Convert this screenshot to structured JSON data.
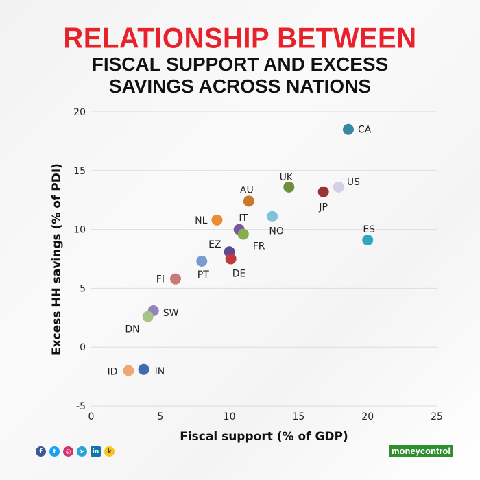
{
  "title_line1": "RELATIONSHIP BETWEEN",
  "title_line2": "FISCAL SUPPORT AND EXCESS",
  "title_line3": "SAVINGS ACROSS NATIONS",
  "brand": "moneycontrol",
  "social_icons": [
    "facebook-icon",
    "twitter-icon",
    "instagram-icon",
    "telegram-icon",
    "linkedin-icon",
    "koo-icon"
  ],
  "chart_data": {
    "type": "scatter",
    "xlabel": "Fiscal support (% of GDP)",
    "ylabel": "Excess HH savings (% of PDI)",
    "xlim": [
      0,
      25
    ],
    "ylim": [
      -5,
      20
    ],
    "xticks": [
      0,
      5,
      10,
      15,
      20,
      25
    ],
    "yticks": [
      -5,
      0,
      5,
      10,
      15,
      20
    ],
    "grid": "horizontal",
    "points": [
      {
        "label": "CA",
        "x": 18.6,
        "y": 18.5,
        "color": "#3a87a0"
      },
      {
        "label": "US",
        "x": 17.9,
        "y": 13.6,
        "color": "#d3d0e6"
      },
      {
        "label": "JP",
        "x": 16.8,
        "y": 13.2,
        "color": "#9b3335"
      },
      {
        "label": "UK",
        "x": 14.3,
        "y": 13.6,
        "color": "#6f8f3a"
      },
      {
        "label": "AU",
        "x": 11.4,
        "y": 12.4,
        "color": "#c9782c"
      },
      {
        "label": "NO",
        "x": 13.1,
        "y": 11.1,
        "color": "#7ec3dc"
      },
      {
        "label": "NL",
        "x": 9.1,
        "y": 10.8,
        "color": "#ee8a32"
      },
      {
        "label": "IT",
        "x": 10.7,
        "y": 10.0,
        "color": "#7a56a0"
      },
      {
        "label": "FR",
        "x": 11.0,
        "y": 9.6,
        "color": "#86ad4c"
      },
      {
        "label": "ES",
        "x": 20.0,
        "y": 9.1,
        "color": "#33a5bf"
      },
      {
        "label": "EZ",
        "x": 10.0,
        "y": 8.1,
        "color": "#5a4a8e"
      },
      {
        "label": "DE",
        "x": 10.1,
        "y": 7.5,
        "color": "#c0393c"
      },
      {
        "label": "PT",
        "x": 8.0,
        "y": 7.3,
        "color": "#7b9ad0"
      },
      {
        "label": "FI",
        "x": 6.1,
        "y": 5.8,
        "color": "#c97a7a"
      },
      {
        "label": "SW",
        "x": 4.5,
        "y": 3.1,
        "color": "#9283bd"
      },
      {
        "label": "DN",
        "x": 4.1,
        "y": 2.6,
        "color": "#a8c484"
      },
      {
        "label": "IN",
        "x": 3.8,
        "y": -1.9,
        "color": "#3d6db0"
      },
      {
        "label": "ID",
        "x": 2.7,
        "y": -2.0,
        "color": "#f1a678"
      }
    ]
  }
}
